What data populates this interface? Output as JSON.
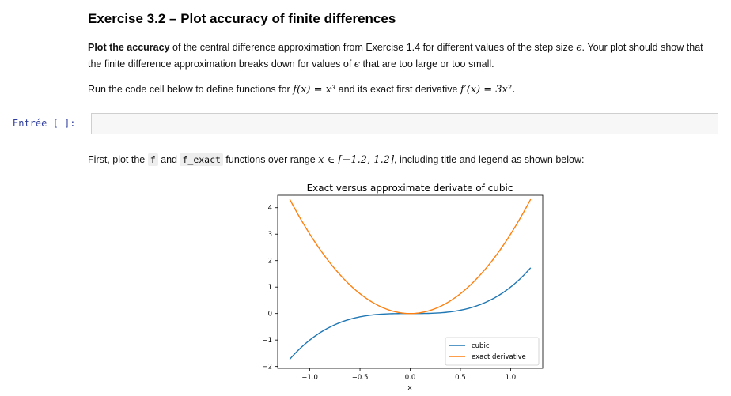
{
  "heading": "Exercise 3.2 – Plot accuracy of finite differences",
  "p1": {
    "bold": "Plot the accuracy",
    "text1": " of the central difference approximation from Exercise 1.4 for different values of the step size ",
    "eps": "ϵ",
    "text2": ". Your plot should show that the finite difference approximation breaks down for values of ",
    "text3": " that are too large or too small."
  },
  "p2": {
    "text1": "Run the code cell below to define functions for ",
    "fx": "f(x) = x³",
    "text2": " and its exact first derivative ",
    "fpx": "f′(x) = 3x².",
    "text3": ""
  },
  "cell": {
    "prompt": "Entrée [ ]:",
    "code": ""
  },
  "p3": {
    "text1": "First, plot the ",
    "code1": "f",
    "text2": " and ",
    "code2": "f_exact",
    "text3": " functions over range ",
    "range": "x ∈ [−1.2, 1.2]",
    "text4": ", including title and legend as shown below:"
  },
  "chart_data": {
    "type": "line",
    "title": "Exact versus approximate derivate of cubic",
    "xlabel": "x",
    "ylabel": "",
    "xlim": [
      -1.32,
      1.32
    ],
    "ylim": [
      -2.07,
      4.47
    ],
    "xticks": [
      -1.0,
      -0.5,
      0.0,
      0.5,
      1.0
    ],
    "xtick_labels": [
      "−1.0",
      "−0.5",
      "0.0",
      "0.5",
      "1.0"
    ],
    "yticks": [
      -2,
      -1,
      0,
      1,
      2,
      3,
      4
    ],
    "ytick_labels": [
      "−2",
      "−1",
      "0",
      "1",
      "2",
      "3",
      "4"
    ],
    "grid": false,
    "legend": "lower-right",
    "series": [
      {
        "name": "cubic",
        "color": "#1f77b4",
        "function": "x^3",
        "x": [
          -1.2,
          -1.0,
          -0.8,
          -0.6,
          -0.4,
          -0.2,
          0.0,
          0.2,
          0.4,
          0.6,
          0.8,
          1.0,
          1.2
        ],
        "y": [
          -1.728,
          -1.0,
          -0.512,
          -0.216,
          -0.064,
          -0.008,
          0.0,
          0.008,
          0.064,
          0.216,
          0.512,
          1.0,
          1.728
        ]
      },
      {
        "name": "exact derivative",
        "color": "#ff7f0e",
        "function": "3x^2",
        "x": [
          -1.2,
          -1.0,
          -0.8,
          -0.6,
          -0.4,
          -0.2,
          0.0,
          0.2,
          0.4,
          0.6,
          0.8,
          1.0,
          1.2
        ],
        "y": [
          4.32,
          3.0,
          1.92,
          1.08,
          0.48,
          0.12,
          0.0,
          0.12,
          0.48,
          1.08,
          1.92,
          3.0,
          4.32
        ]
      }
    ]
  }
}
